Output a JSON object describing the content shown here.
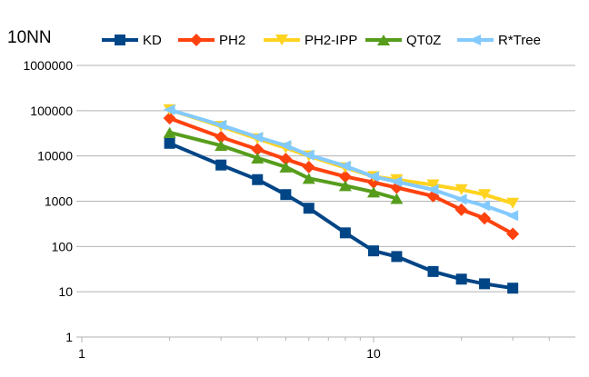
{
  "chart_data": {
    "type": "line",
    "title": "10NN",
    "xlabel": "",
    "ylabel": "",
    "x_scale": "log",
    "y_scale": "log",
    "xlim": [
      1,
      40
    ],
    "ylim": [
      1,
      1000000
    ],
    "grid": "horizontal",
    "legend_position": "top",
    "x_tick_labels": [
      "1",
      "10"
    ],
    "y_tick_labels": [
      "1",
      "10",
      "100",
      "1000",
      "10000",
      "100000",
      "1000000"
    ],
    "series": [
      {
        "name": "KD",
        "color": "#004586",
        "marker": "square",
        "x": [
          2,
          3,
          4,
          5,
          6,
          8,
          10,
          12,
          16,
          20,
          24,
          30
        ],
        "y": [
          19000,
          6300,
          3000,
          1400,
          700,
          200,
          80,
          60,
          28,
          19,
          15,
          12
        ]
      },
      {
        "name": "PH2",
        "color": "#ff420e",
        "marker": "diamond",
        "x": [
          2,
          3,
          4,
          5,
          6,
          8,
          10,
          12,
          16,
          20,
          24,
          30
        ],
        "y": [
          68000,
          26000,
          14000,
          8500,
          5700,
          3500,
          2600,
          2000,
          1300,
          650,
          420,
          190
        ]
      },
      {
        "name": "PH2-IPP",
        "color": "#ffd320",
        "marker": "triangle-down",
        "x": [
          2,
          3,
          4,
          5,
          6,
          8,
          10,
          12,
          16,
          20,
          24,
          30
        ],
        "y": [
          105000,
          45000,
          24000,
          15000,
          10000,
          5500,
          3500,
          3000,
          2300,
          1800,
          1400,
          900
        ]
      },
      {
        "name": "QT0Z",
        "color": "#579d1c",
        "marker": "triangle-up",
        "x": [
          2,
          3,
          4,
          5,
          6,
          8,
          10,
          12
        ],
        "y": [
          33000,
          17000,
          9000,
          5700,
          3200,
          2200,
          1600,
          1150
        ]
      },
      {
        "name": "R*Tree",
        "color": "#83caff",
        "marker": "arrow-left",
        "x": [
          2,
          3,
          4,
          5,
          6,
          8,
          10,
          12,
          16,
          20,
          24,
          30
        ],
        "y": [
          105000,
          48000,
          26000,
          17000,
          10500,
          6000,
          3500,
          2700,
          1800,
          1100,
          800,
          480
        ]
      }
    ]
  }
}
